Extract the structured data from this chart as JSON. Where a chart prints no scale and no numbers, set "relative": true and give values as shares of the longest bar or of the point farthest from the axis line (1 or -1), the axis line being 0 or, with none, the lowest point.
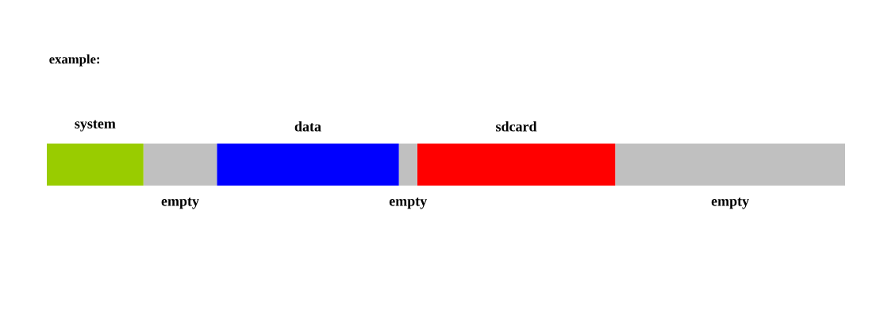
{
  "chart_data": {
    "type": "bar",
    "title": "example:",
    "orientation": "horizontal",
    "stacked": true,
    "relative": true,
    "categories": [
      null
    ],
    "series": [
      {
        "name": "system",
        "color": "#99cc00",
        "values": [
          0.121
        ]
      },
      {
        "name": "empty",
        "color": "#c0c0c0",
        "values": [
          0.092
        ]
      },
      {
        "name": "data",
        "color": "#0000ff",
        "values": [
          0.228
        ]
      },
      {
        "name": "empty",
        "color": "#c0c0c0",
        "values": [
          0.023
        ]
      },
      {
        "name": "sdcard",
        "color": "#ff0000",
        "values": [
          0.248
        ]
      },
      {
        "name": "empty",
        "color": "#c0c0c0",
        "values": [
          0.288
        ]
      }
    ]
  }
}
